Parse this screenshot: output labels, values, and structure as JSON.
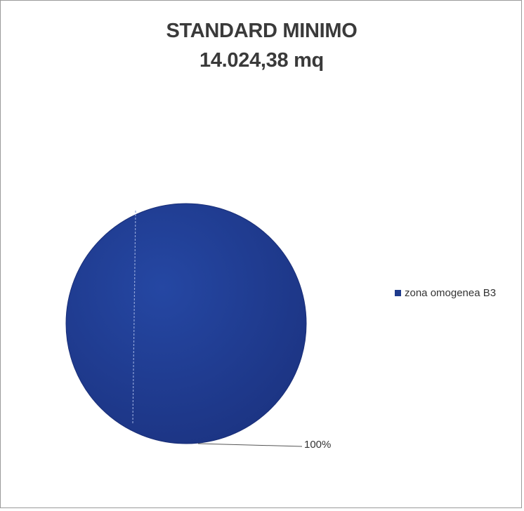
{
  "chart_data": {
    "type": "pie",
    "title_lines": [
      "STANDARD MINIMO",
      "14.024,38 mq"
    ],
    "slices": [
      {
        "label": "zona omogenea B3",
        "value": 100,
        "data_label": "100%",
        "color": "#1f3b8c"
      }
    ],
    "legend_position": "right"
  }
}
